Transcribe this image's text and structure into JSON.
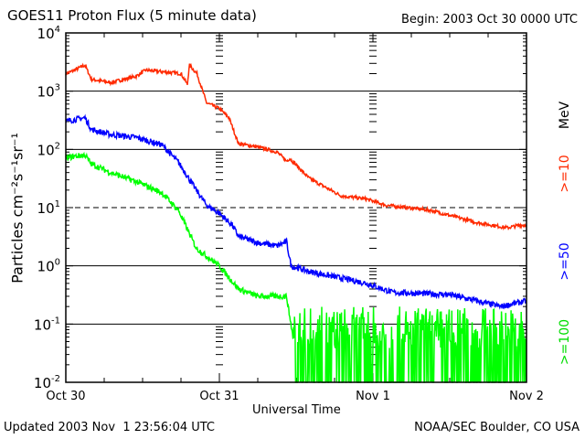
{
  "chart_data": {
    "type": "line",
    "title": "GOES11 Proton Flux (5 minute data)",
    "begin": "Begin: 2003 Oct 30 0000 UTC",
    "xlabel": "Universal Time",
    "ylabel": "Particles cm⁻²s⁻¹sr⁻¹",
    "yscale": "log",
    "ylim": [
      0.01,
      10000
    ],
    "xlim_hours": [
      0,
      72
    ],
    "x_ticks": [
      {
        "h": 0,
        "label": "Oct 30"
      },
      {
        "h": 24,
        "label": "Oct 31"
      },
      {
        "h": 48,
        "label": "Nov 1"
      },
      {
        "h": 72,
        "label": "Nov 2"
      }
    ],
    "y_ticks": [
      {
        "exp": 4
      },
      {
        "exp": 3
      },
      {
        "exp": 2
      },
      {
        "exp": 1
      },
      {
        "exp": 0
      },
      {
        "exp": -1
      },
      {
        "exp": -2
      }
    ],
    "unit_label": "MeV",
    "series": [
      {
        "name": ">=10",
        "color": "#ff2a00",
        "noise": 0.03,
        "x_hours": [
          0,
          1,
          3,
          4,
          7,
          11,
          12.5,
          18,
          19,
          19.3,
          20.5,
          21.4,
          22,
          24,
          25.5,
          27,
          30,
          33,
          34.5,
          35,
          38,
          43,
          47,
          50,
          57,
          64,
          69,
          71,
          72
        ],
        "flux": [
          2000,
          2200,
          2800,
          1600,
          1400,
          1800,
          2300,
          2000,
          1300,
          2800,
          2000,
          1000,
          630,
          500,
          350,
          125,
          110,
          90,
          63,
          70,
          32,
          16,
          14,
          11,
          9,
          5.6,
          4.5,
          5,
          5
        ]
      },
      {
        "name": ">=50",
        "color": "#0000ff",
        "noise": 0.05,
        "x_hours": [
          0,
          1,
          3,
          4,
          7,
          11,
          15,
          17.6,
          20.4,
          22,
          24,
          26,
          27,
          30,
          33,
          34.5,
          35.2,
          38,
          47,
          51,
          60,
          68,
          72
        ],
        "flux": [
          300,
          320,
          350,
          220,
          180,
          160,
          120,
          60,
          20,
          11,
          8,
          5,
          3.2,
          2.5,
          2.2,
          2.6,
          1.0,
          0.8,
          0.5,
          0.35,
          0.32,
          0.2,
          0.25
        ]
      },
      {
        "name": ">=100",
        "color": "#00ff00",
        "noise": 0.05,
        "x_hours": [
          0,
          1,
          3,
          4,
          7,
          11,
          15,
          17.6,
          20.4,
          24,
          27,
          30,
          33,
          34.5,
          35.5,
          36,
          48,
          60,
          72
        ],
        "flux": [
          70,
          75,
          80,
          56,
          40,
          28,
          18,
          9,
          2,
          1,
          0.4,
          0.3,
          0.3,
          0.3,
          0.06,
          0.03,
          0.03,
          0.03,
          0.03
        ],
        "noisy_after_hours": 35.5
      }
    ]
  },
  "footer": {
    "updated": "Updated 2003 Nov  1 23:56:04 UTC",
    "source": "NOAA/SEC Boulder, CO USA"
  }
}
